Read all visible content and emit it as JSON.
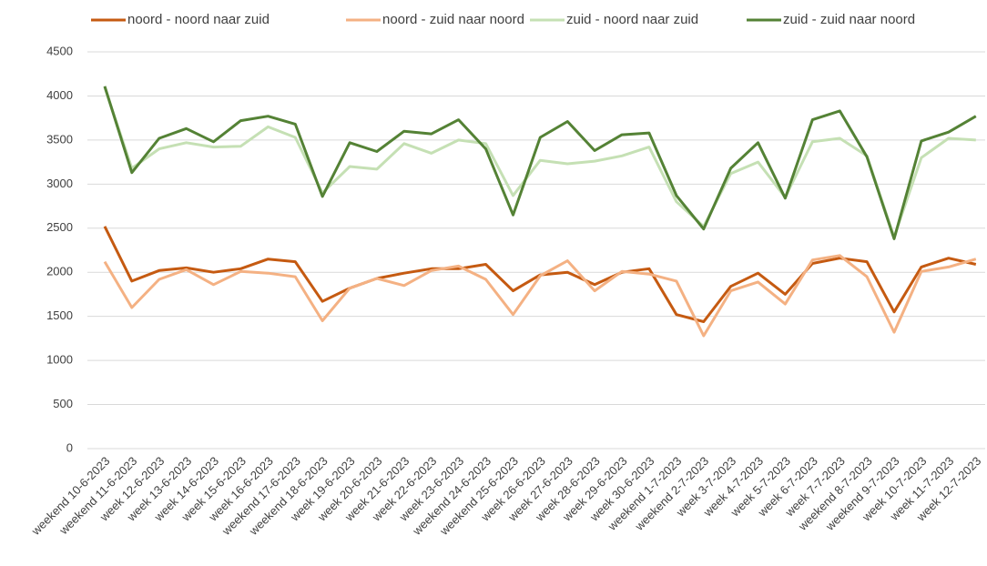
{
  "chart_data": {
    "type": "line",
    "categories": [
      "weekend 10-6-2023",
      "weekend 11-6-2023",
      "week 12-6-2023",
      "week 13-6-2023",
      "week 14-6-2023",
      "week 15-6-2023",
      "week 16-6-2023",
      "weekend 17-6-2023",
      "weekend 18-6-2023",
      "week 19-6-2023",
      "week 20-6-2023",
      "week 21-6-2023",
      "week 22-6-2023",
      "week 23-6-2023",
      "weekend 24-6-2023",
      "weekend 25-6-2023",
      "week 26-6-2023",
      "week 27-6-2023",
      "week 28-6-2023",
      "week 29-6-2023",
      "week 30-6-2023",
      "weekend 1-7-2023",
      "weekend 2-7-2023",
      "week 3-7-2023",
      "week 4-7-2023",
      "week 5-7-2023",
      "week 6-7-2023",
      "week 7-7-2023",
      "weekend 8-7-2023",
      "weekend 9-7-2023",
      "week 10-7-2023",
      "week 11-7-2023",
      "week 12-7-2023"
    ],
    "series": [
      {
        "name": "noord - noord naar zuid",
        "color": "#c55a11",
        "values": [
          2520,
          1900,
          2020,
          2050,
          2000,
          2040,
          2150,
          2120,
          1670,
          1820,
          1930,
          1990,
          2040,
          2040,
          2090,
          1790,
          1970,
          2000,
          1860,
          2000,
          2040,
          1520,
          1440,
          1840,
          1990,
          1750,
          2100,
          2160,
          2120,
          1550,
          2060,
          2160,
          2090
        ]
      },
      {
        "name": "noord - zuid naar noord",
        "color": "#f4b183",
        "values": [
          2120,
          1600,
          1920,
          2030,
          1860,
          2010,
          1990,
          1950,
          1450,
          1820,
          1930,
          1850,
          2020,
          2070,
          1920,
          1520,
          1960,
          2130,
          1790,
          2010,
          1980,
          1900,
          1280,
          1790,
          1890,
          1640,
          2140,
          2190,
          1950,
          1320,
          2010,
          2060,
          2150
        ]
      },
      {
        "name": "zuid - noord naar zuid",
        "color": "#c5e0b4",
        "values": [
          4100,
          3180,
          3400,
          3470,
          3420,
          3430,
          3650,
          3530,
          2900,
          3200,
          3170,
          3460,
          3350,
          3500,
          3460,
          2870,
          3270,
          3230,
          3260,
          3320,
          3420,
          2800,
          2520,
          3120,
          3250,
          2850,
          3480,
          3520,
          3320,
          2400,
          3300,
          3520,
          3500
        ]
      },
      {
        "name": "zuid - zuid naar noord",
        "color": "#548235",
        "values": [
          4110,
          3130,
          3520,
          3630,
          3480,
          3720,
          3770,
          3680,
          2860,
          3470,
          3370,
          3600,
          3570,
          3730,
          3400,
          2650,
          3530,
          3710,
          3380,
          3560,
          3580,
          2870,
          2490,
          3180,
          3470,
          2840,
          3730,
          3830,
          3310,
          2380,
          3490,
          3590,
          3770
        ]
      }
    ],
    "ylim": [
      0,
      4500
    ],
    "yticks": [
      0,
      500,
      1000,
      1500,
      2000,
      2500,
      3000,
      3500,
      4000,
      4500
    ],
    "grid": true,
    "legend": "top"
  }
}
